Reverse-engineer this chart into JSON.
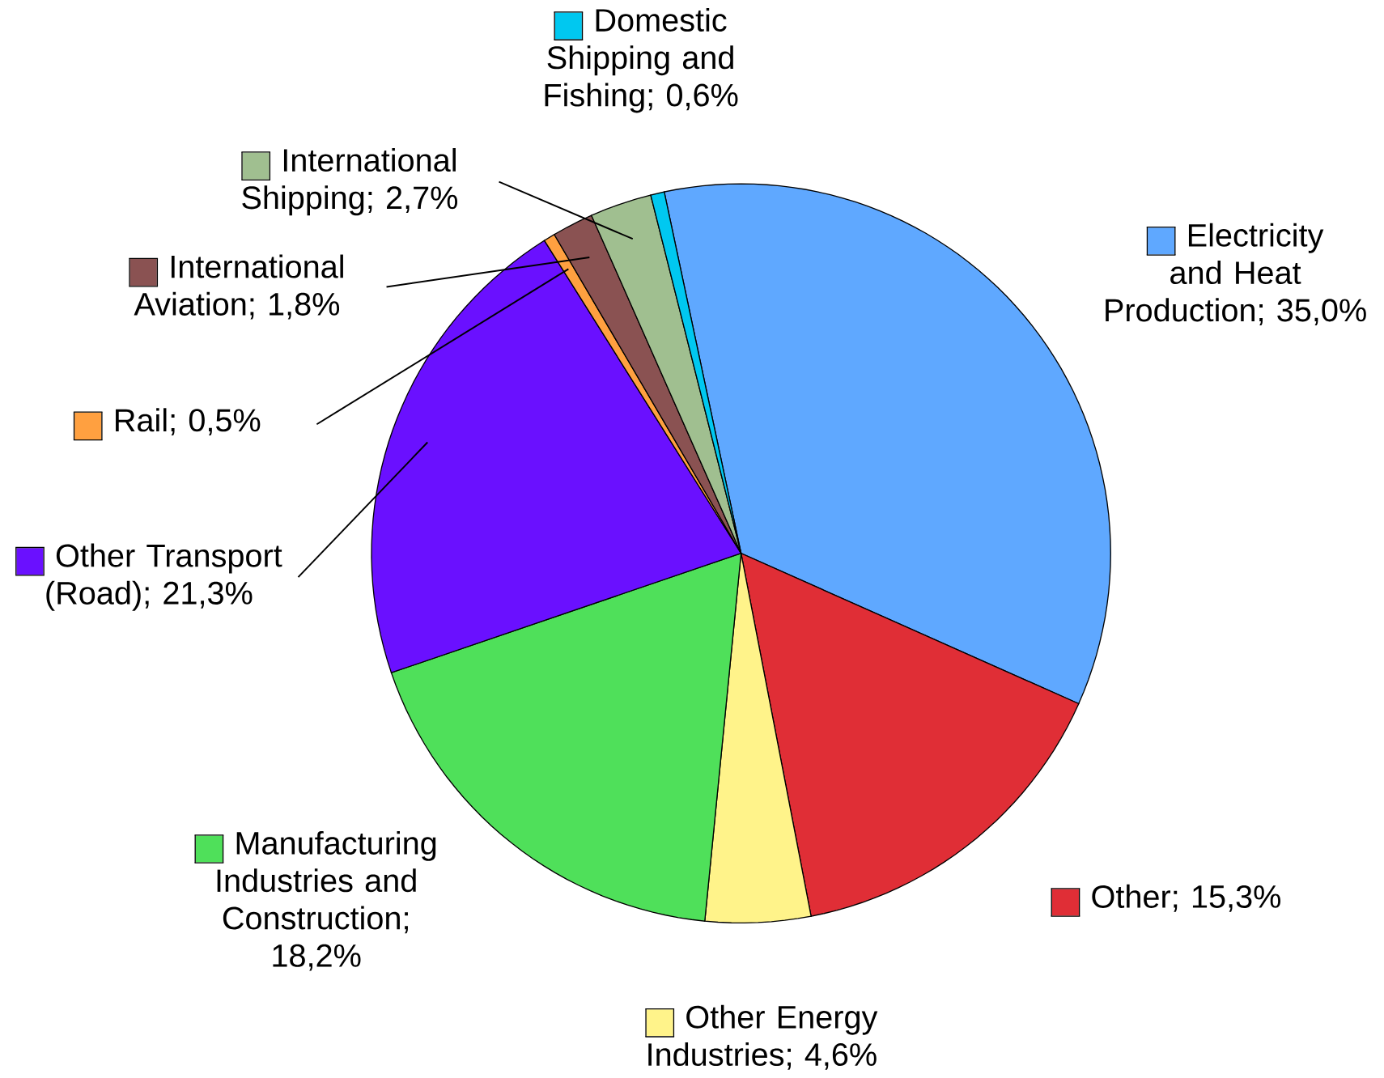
{
  "chart_data": {
    "type": "pie",
    "categories": [
      "Electricity and Heat Production; 35,0%",
      "Other; 15,3%",
      "Other Energy Industries; 4,6%",
      "Manufacturing Industries and Construction; 18,2%",
      "Other Transport (Road); 21,3%",
      "Rail; 0,5%",
      "International Aviation; 1,8%",
      "International Shipping; 2,7%",
      "Domestic Shipping and Fishing; 0,6%"
    ],
    "values": [
      35.0,
      15.3,
      4.6,
      18.2,
      21.3,
      0.5,
      1.8,
      2.7,
      0.6
    ],
    "colors": [
      "#5fa8ff",
      "#e02e36",
      "#fff38a",
      "#4fe05a",
      "#6a10ff",
      "#ffa040",
      "#8a5252",
      "#a0bf90",
      "#00c8f0"
    ],
    "legend": "top left"
  }
}
